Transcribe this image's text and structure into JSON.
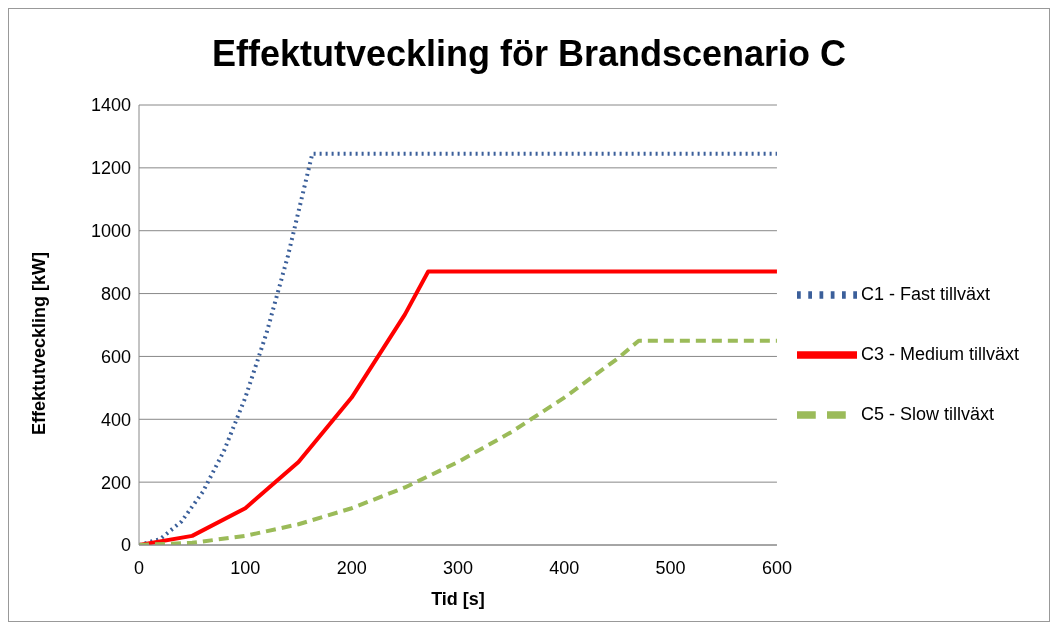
{
  "chart_data": {
    "type": "line",
    "title": "Effektutveckling för Brandscenario C",
    "xlabel": "Tid [s]",
    "ylabel": "Effektutveckling [kW]",
    "xlim": [
      0,
      600
    ],
    "xticks": [
      0,
      100,
      200,
      300,
      400,
      500,
      600
    ],
    "ylim": [
      0,
      1400
    ],
    "yticks": [
      0,
      200,
      400,
      600,
      800,
      1000,
      1200,
      1400
    ],
    "grid": "y",
    "legend": "right",
    "marker": "none",
    "series": [
      {
        "name": "C1 - Fast tillväxt",
        "color": "#3b5f9a",
        "line_style": "dotted",
        "x": [
          0,
          20,
          40,
          60,
          80,
          100,
          120,
          140,
          163,
          600
        ],
        "values": [
          0,
          19,
          75,
          169,
          300,
          469,
          675,
          919,
          1245,
          1245
        ]
      },
      {
        "name": "C3 - Medium tillväxt",
        "color": "#ff0000",
        "line_style": "solid",
        "x": [
          0,
          50,
          100,
          150,
          200,
          250,
          272,
          600
        ],
        "values": [
          0,
          29,
          117,
          264,
          469,
          733,
          870,
          870
        ]
      },
      {
        "name": "C5 - Slow tillväxt",
        "color": "#9bbb59",
        "line_style": "dashed",
        "x": [
          0,
          50,
          100,
          150,
          200,
          250,
          300,
          350,
          400,
          450,
          470,
          600
        ],
        "values": [
          0,
          7,
          29,
          66,
          117,
          183,
          264,
          359,
          469,
          593,
          650,
          650
        ]
      }
    ]
  }
}
